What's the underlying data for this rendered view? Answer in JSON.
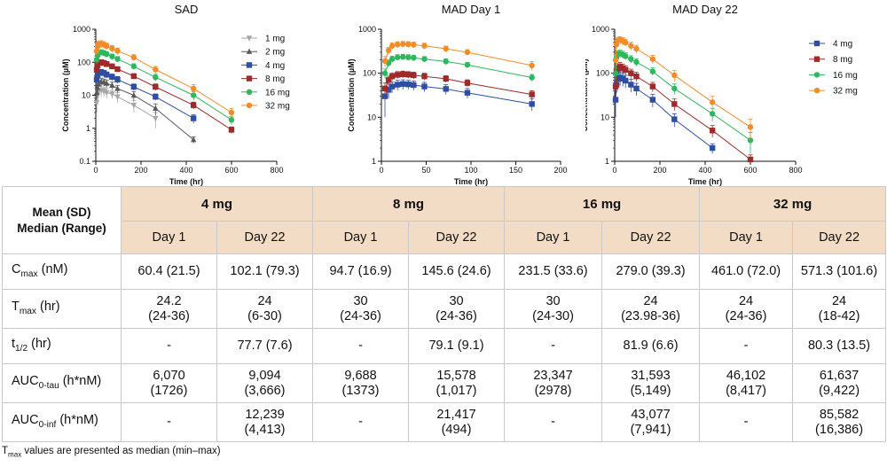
{
  "chart_data": [
    {
      "type": "line",
      "title": "SAD",
      "xlabel": "Time (hr)",
      "ylabel": "Concentration (µM)",
      "y_scale": "log",
      "xlim": [
        0,
        800
      ],
      "ylim": [
        0.1,
        1000
      ],
      "x_ticks": [
        "0",
        "200",
        "400",
        "600",
        "800"
      ],
      "y_ticks": [
        "0.1",
        "1",
        "10",
        "100",
        "1000"
      ],
      "legend_position": "right",
      "series": [
        {
          "name": "1 mg",
          "color": "#a6a6a6",
          "marker": "triangle-down",
          "x": [
            4,
            8,
            12,
            24,
            36,
            48,
            72,
            96,
            168,
            264
          ],
          "y": [
            6,
            10,
            13,
            14,
            13,
            12,
            11,
            9,
            5,
            2
          ],
          "err": [
            3,
            4,
            5,
            5,
            4,
            4,
            3,
            3,
            2,
            1
          ]
        },
        {
          "name": "2 mg",
          "color": "#595959",
          "marker": "triangle-up",
          "x": [
            4,
            8,
            12,
            24,
            36,
            48,
            72,
            96,
            168,
            264,
            432
          ],
          "y": [
            12,
            17,
            22,
            26,
            25,
            23,
            20,
            16,
            10,
            4,
            0.45
          ],
          "err": [
            4,
            5,
            6,
            7,
            6,
            6,
            5,
            4,
            3,
            1.5,
            0.1
          ]
        },
        {
          "name": "4 mg",
          "color": "#2f4ea2",
          "marker": "square",
          "x": [
            4,
            8,
            12,
            24,
            36,
            48,
            72,
            96,
            168,
            264,
            432
          ],
          "y": [
            30,
            40,
            48,
            50,
            47,
            42,
            36,
            30,
            18,
            9,
            2
          ],
          "err": [
            8,
            10,
            11,
            11,
            10,
            9,
            8,
            7,
            4,
            2,
            0.6
          ]
        },
        {
          "name": "8 mg",
          "color": "#9e2a2b",
          "marker": "square",
          "x": [
            4,
            8,
            12,
            24,
            36,
            48,
            72,
            96,
            168,
            264,
            432,
            600
          ],
          "y": [
            60,
            80,
            95,
            100,
            95,
            88,
            75,
            62,
            38,
            18,
            5,
            0.9
          ],
          "err": [
            15,
            18,
            20,
            20,
            18,
            16,
            14,
            11,
            7,
            4,
            1.2,
            0.2
          ]
        },
        {
          "name": "16 mg",
          "color": "#2eb85c",
          "marker": "circle",
          "x": [
            4,
            8,
            12,
            24,
            36,
            48,
            72,
            96,
            168,
            264,
            432,
            600
          ],
          "y": [
            120,
            160,
            190,
            200,
            190,
            175,
            150,
            125,
            75,
            35,
            10,
            1.8
          ],
          "err": [
            30,
            35,
            40,
            40,
            36,
            32,
            28,
            24,
            15,
            8,
            3,
            0.5
          ]
        },
        {
          "name": "32 mg",
          "color": "#f28c28",
          "marker": "circle",
          "x": [
            4,
            8,
            12,
            24,
            36,
            48,
            72,
            96,
            168,
            264,
            432,
            600
          ],
          "y": [
            220,
            300,
            350,
            360,
            340,
            310,
            260,
            220,
            140,
            60,
            16,
            3
          ],
          "err": [
            60,
            80,
            90,
            90,
            80,
            70,
            60,
            50,
            30,
            15,
            5,
            1
          ]
        }
      ]
    },
    {
      "type": "line",
      "title": "MAD Day 1",
      "xlabel": "Time (hr)",
      "ylabel": "Concentration (µM)",
      "y_scale": "log",
      "xlim": [
        0,
        200
      ],
      "ylim": [
        1,
        1000
      ],
      "x_ticks": [
        "0",
        "50",
        "100",
        "150",
        "200"
      ],
      "y_ticks": [
        "1",
        "10",
        "100",
        "1000"
      ],
      "series": [
        {
          "name": "4 mg",
          "color": "#2f4ea2",
          "marker": "square",
          "x": [
            4,
            8,
            12,
            18,
            24,
            30,
            36,
            48,
            72,
            96,
            168
          ],
          "y": [
            30,
            42,
            50,
            55,
            57,
            56,
            54,
            50,
            44,
            36,
            20
          ],
          "err": [
            20,
            15,
            14,
            14,
            14,
            13,
            13,
            12,
            11,
            9,
            6
          ]
        },
        {
          "name": "8 mg",
          "color": "#9e2a2b",
          "marker": "square",
          "x": [
            4,
            8,
            12,
            18,
            24,
            30,
            36,
            48,
            72,
            96,
            168
          ],
          "y": [
            45,
            70,
            85,
            92,
            95,
            93,
            90,
            85,
            75,
            60,
            33
          ],
          "err": [
            15,
            16,
            17,
            17,
            17,
            16,
            16,
            15,
            13,
            11,
            7
          ]
        },
        {
          "name": "16 mg",
          "color": "#2eb85c",
          "marker": "circle",
          "x": [
            4,
            8,
            12,
            18,
            24,
            30,
            36,
            48,
            72,
            96,
            168
          ],
          "y": [
            100,
            170,
            210,
            230,
            235,
            230,
            225,
            210,
            185,
            155,
            80
          ],
          "err": [
            25,
            30,
            35,
            35,
            35,
            34,
            33,
            30,
            27,
            22,
            14
          ]
        },
        {
          "name": "32 mg",
          "color": "#f28c28",
          "marker": "circle",
          "x": [
            4,
            8,
            12,
            18,
            24,
            30,
            36,
            48,
            72,
            96,
            168
          ],
          "y": [
            190,
            330,
            420,
            450,
            460,
            455,
            445,
            420,
            360,
            300,
            150
          ],
          "err": [
            50,
            60,
            70,
            70,
            70,
            68,
            66,
            62,
            55,
            45,
            35
          ]
        }
      ]
    },
    {
      "type": "line",
      "title": "MAD Day 22",
      "xlabel": "Time (hr)",
      "ylabel": "Concentration (µM)",
      "y_scale": "log",
      "xlim": [
        0,
        800
      ],
      "ylim": [
        1,
        1000
      ],
      "x_ticks": [
        "0",
        "200",
        "400",
        "600",
        "800"
      ],
      "y_ticks": [
        "1",
        "10",
        "100",
        "1000"
      ],
      "legend_position": "right",
      "series": [
        {
          "name": "4 mg",
          "color": "#2f4ea2",
          "marker": "square",
          "x": [
            4,
            8,
            12,
            24,
            36,
            48,
            72,
            96,
            168,
            264,
            432
          ],
          "y": [
            25,
            55,
            75,
            80,
            75,
            68,
            55,
            45,
            25,
            9,
            2
          ],
          "err": [
            15,
            20,
            25,
            28,
            25,
            22,
            18,
            14,
            8,
            3,
            0.5
          ]
        },
        {
          "name": "8 mg",
          "color": "#9e2a2b",
          "marker": "square",
          "x": [
            4,
            8,
            12,
            24,
            36,
            48,
            72,
            96,
            168,
            264,
            432,
            600
          ],
          "y": [
            50,
            110,
            130,
            140,
            130,
            120,
            100,
            85,
            50,
            20,
            5,
            1.1
          ],
          "err": [
            20,
            30,
            35,
            35,
            32,
            28,
            24,
            20,
            12,
            6,
            1.5,
            0.3
          ]
        },
        {
          "name": "16 mg",
          "color": "#2eb85c",
          "marker": "circle",
          "x": [
            4,
            8,
            12,
            24,
            36,
            48,
            72,
            96,
            168,
            264,
            432,
            600
          ],
          "y": [
            100,
            230,
            270,
            280,
            265,
            245,
            210,
            180,
            110,
            45,
            12,
            3
          ],
          "err": [
            30,
            50,
            55,
            55,
            50,
            45,
            40,
            35,
            22,
            12,
            4,
            1.5
          ]
        },
        {
          "name": "32 mg",
          "color": "#f28c28",
          "marker": "circle",
          "x": [
            4,
            8,
            12,
            24,
            36,
            48,
            72,
            96,
            168,
            264,
            432,
            600
          ],
          "y": [
            200,
            450,
            550,
            570,
            540,
            500,
            420,
            360,
            210,
            90,
            22,
            6
          ],
          "err": [
            60,
            100,
            110,
            110,
            105,
            95,
            85,
            72,
            45,
            25,
            8,
            3
          ]
        }
      ]
    }
  ],
  "table": {
    "corner_line1": "Mean (SD)",
    "corner_line2": "Median (Range)",
    "doses": [
      "4 mg",
      "8 mg",
      "16 mg",
      "32 mg"
    ],
    "days": [
      "Day 1",
      "Day 22",
      "Day 1",
      "Day 22",
      "Day 1",
      "Day 22",
      "Day 1",
      "Day 22"
    ],
    "rows": [
      {
        "label_main": "C",
        "label_sub": "max",
        "label_rest": " (nM)",
        "cells": [
          [
            "60.4 (21.5)"
          ],
          [
            "102.1 (79.3)"
          ],
          [
            "94.7 (16.9)"
          ],
          [
            "145.6 (24.6)"
          ],
          [
            "231.5 (33.6)"
          ],
          [
            "279.0 (39.3)"
          ],
          [
            "461.0 (72.0)"
          ],
          [
            "571.3 (101.6)"
          ]
        ]
      },
      {
        "label_main": "T",
        "label_sub": "max",
        "label_rest": " (hr)",
        "cells": [
          [
            "24.2",
            "(24-36)"
          ],
          [
            "24",
            "(6-30)"
          ],
          [
            "30",
            "(24-36)"
          ],
          [
            "30",
            "(24-36)"
          ],
          [
            "30",
            "(24-30)"
          ],
          [
            "24",
            "(23.98-36)"
          ],
          [
            "24",
            "(24-36)"
          ],
          [
            "24",
            "(18-42)"
          ]
        ]
      },
      {
        "label_main": "t",
        "label_sub": "1/2",
        "label_rest": " (hr)",
        "cells": [
          [
            "-"
          ],
          [
            "77.7 (7.6)"
          ],
          [
            "-"
          ],
          [
            "79.1 (9.1)"
          ],
          [
            "-"
          ],
          [
            "81.9 (6.6)"
          ],
          [
            "-"
          ],
          [
            "80.3 (13.5)"
          ]
        ]
      },
      {
        "label_main": "AUC",
        "label_sub": "0-tau",
        "label_rest": " (h*nM)",
        "cells": [
          [
            "6,070",
            "(1726)"
          ],
          [
            "9,094",
            "(3,666)"
          ],
          [
            "9,688",
            "(1373)"
          ],
          [
            "15,578",
            "(1,017)"
          ],
          [
            "23,347",
            "(2978)"
          ],
          [
            "31,593",
            "(5,149)"
          ],
          [
            "46,102",
            "(8,417)"
          ],
          [
            "61,637",
            "(9,422)"
          ]
        ]
      },
      {
        "label_main": "AUC",
        "label_sub": "0-inf",
        "label_rest": " (h*nM)",
        "cells": [
          [
            "-"
          ],
          [
            "12,239",
            "(4,413)"
          ],
          [
            "-"
          ],
          [
            "21,417",
            "(494)"
          ],
          [
            "-"
          ],
          [
            "43,077",
            "(7,941)"
          ],
          [
            "-"
          ],
          [
            "85,582",
            "(16,386)"
          ]
        ]
      }
    ]
  },
  "footnote": {
    "main": "T",
    "sub": "max",
    "rest": " values are presented as median (min–max)"
  }
}
